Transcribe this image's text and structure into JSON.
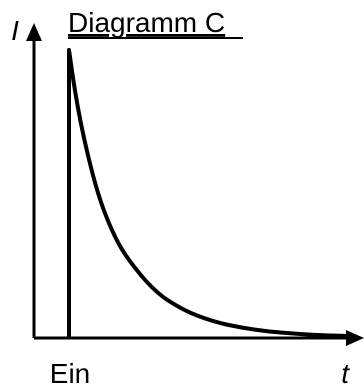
{
  "chart_data": {
    "type": "line",
    "title": "Diagramm C",
    "xlabel": "t",
    "ylabel": "I",
    "x_tick_labels": [
      "Ein"
    ],
    "grid": false,
    "legend": "none",
    "series": [
      {
        "x": [
          0,
          0,
          0.02,
          0.05,
          0.1,
          0.15,
          0.2,
          0.3,
          0.4,
          0.5,
          0.6,
          0.7,
          0.8,
          0.9,
          1.0
        ],
        "y": [
          0,
          1.0,
          0.86,
          0.7,
          0.5,
          0.37,
          0.28,
          0.16,
          0.096,
          0.058,
          0.036,
          0.022,
          0.014,
          0.009,
          0.006
        ]
      }
    ],
    "colors": {
      "axis": "#000000",
      "curve": "#000000"
    }
  }
}
